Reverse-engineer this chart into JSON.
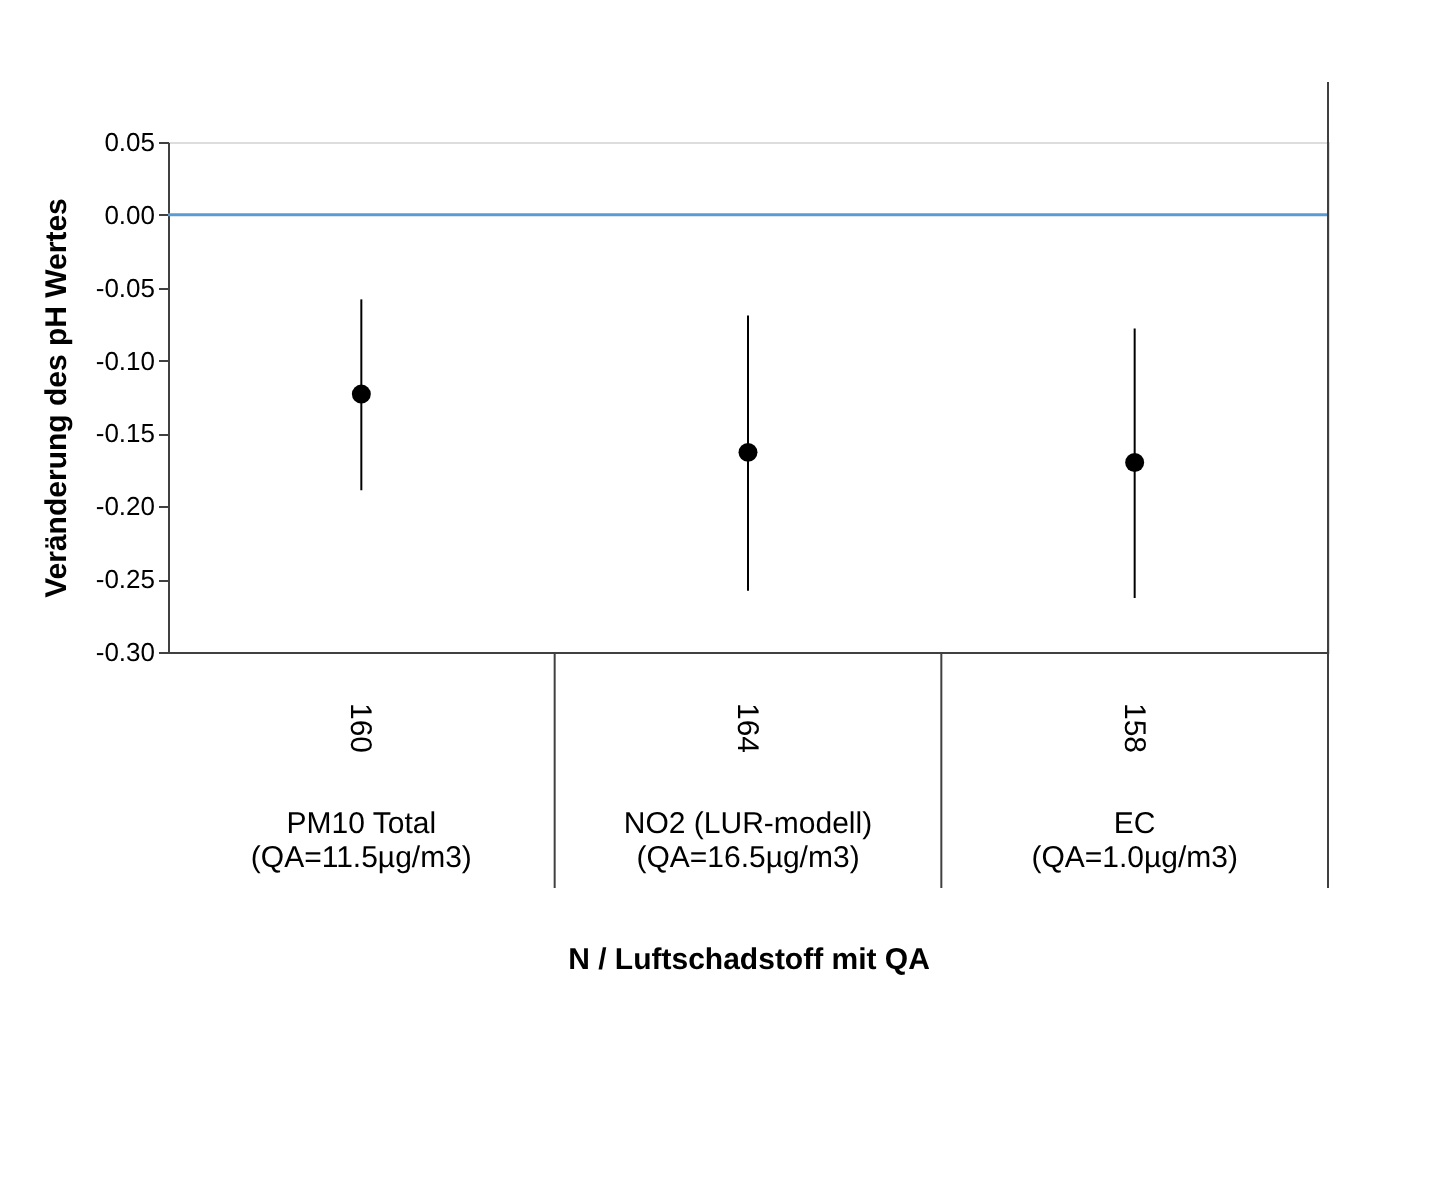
{
  "chart_data": {
    "type": "scatter",
    "xlabel": "N / Luftschadstoff mit QA",
    "ylabel": "Veränderung des pH Wertes",
    "categories": [
      "PM10 Total (QA=11.5µg/m3)",
      "NO2 (LUR-modell) (QA=16.5µg/m3)",
      "EC (QA=1.0µg/m3)"
    ],
    "series": [
      {
        "color": "#000000",
        "values": [
          -0.123,
          -0.163,
          -0.17
        ],
        "errors": [
          [
            -0.189,
            -0.058
          ],
          [
            -0.258,
            -0.069
          ],
          [
            -0.263,
            -0.078
          ]
        ]
      }
    ],
    "marker": "circle",
    "ylim": [
      -0.3,
      0.05
    ],
    "yticks": [
      {
        "value": -0.3,
        "label": "-0.30"
      },
      {
        "value": -0.25,
        "label": "-0.25"
      },
      {
        "value": -0.2,
        "label": "-0.20"
      },
      {
        "value": -0.15,
        "label": "-0.15"
      },
      {
        "value": -0.1,
        "label": "-0.10"
      },
      {
        "value": -0.05,
        "label": "-0.05"
      },
      {
        "value": 0,
        "label": "0.00"
      },
      {
        "value": 0.05,
        "label": "0.05"
      }
    ],
    "ref_lines": [
      {
        "axis": "y",
        "value": 0,
        "color": "#5b9bd5"
      }
    ],
    "annotations": [
      "160",
      "164",
      "158"
    ],
    "grid": false
  }
}
